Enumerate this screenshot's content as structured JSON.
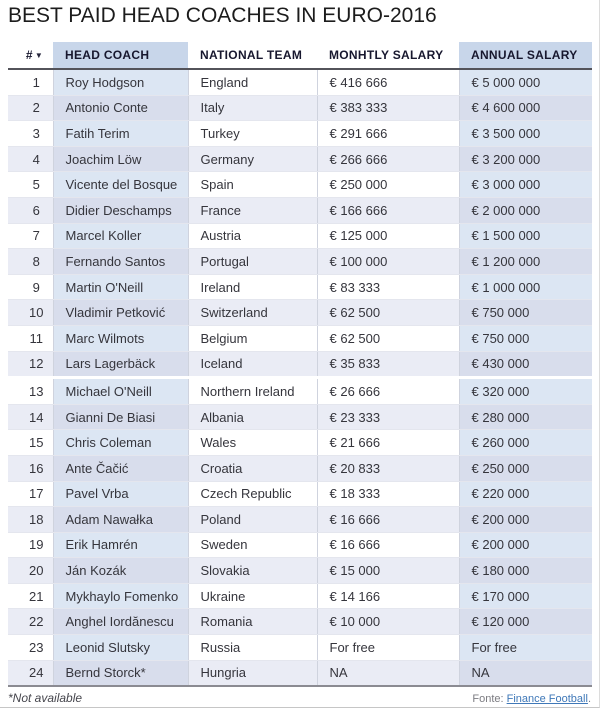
{
  "title": "BEST PAID HEAD COACHES IN EURO-2016",
  "chart_data": {
    "type": "table",
    "sort_icon": "▼",
    "sorted_column": "#",
    "highlighted_columns": [
      "HEAD COACH",
      "ANNUAL SALARY"
    ],
    "columns": [
      "#",
      "HEAD COACH",
      "NATIONAL TEAM",
      "MONHTLY SALARY",
      "ANNUAL SALARY"
    ],
    "rows": [
      [
        "1",
        "Roy Hodgson",
        "England",
        "€ 416 666",
        "€ 5 000 000"
      ],
      [
        "2",
        "Antonio Conte",
        "Italy",
        "€ 383 333",
        "€ 4 600 000"
      ],
      [
        "3",
        "Fatih Terim",
        "Turkey",
        "€ 291 666",
        "€ 3 500 000"
      ],
      [
        "4",
        "Joachim Löw",
        "Germany",
        "€ 266 666",
        "€ 3 200 000"
      ],
      [
        "5",
        "Vicente del Bosque",
        "Spain",
        "€ 250 000",
        "€ 3 000 000"
      ],
      [
        "6",
        "Didier Deschamps",
        "France",
        "€ 166 666",
        "€ 2 000 000"
      ],
      [
        "7",
        "Marcel Koller",
        "Austria",
        "€ 125 000",
        "€ 1 500 000"
      ],
      [
        "8",
        "Fernando Santos",
        "Portugal",
        "€ 100 000",
        "€ 1 200 000"
      ],
      [
        "9",
        "Martin O'Neill",
        "Ireland",
        "€ 83 333",
        "€ 1 000 000"
      ],
      [
        "10",
        "Vladimir Petković",
        "Switzerland",
        "€ 62 500",
        "€ 750 000"
      ],
      [
        "11",
        "Marc Wilmots",
        "Belgium",
        "€ 62 500",
        "€ 750 000"
      ],
      [
        "12",
        "Lars Lagerbäck",
        "Iceland",
        "€ 35 833",
        "€ 430 000"
      ],
      [
        "13",
        "Michael O'Neill",
        "Northern Ireland",
        "€ 26 666",
        "€ 320 000"
      ],
      [
        "14",
        "Gianni De Biasi",
        "Albania",
        "€ 23 333",
        "€ 280 000"
      ],
      [
        "15",
        "Chris Coleman",
        "Wales",
        "€ 21 666",
        "€ 260 000"
      ],
      [
        "16",
        "Ante Čačić",
        "Croatia",
        "€ 20 833",
        "€ 250 000"
      ],
      [
        "17",
        "Pavel Vrba",
        "Czech Republic",
        "€ 18 333",
        "€ 220 000"
      ],
      [
        "18",
        "Adam Nawałka",
        "Poland",
        "€ 16 666",
        "€ 200 000"
      ],
      [
        "19",
        "Erik Hamrén",
        "Sweden",
        "€ 16 666",
        "€ 200 000"
      ],
      [
        "20",
        "Ján Kozák",
        "Slovakia",
        "€ 15 000",
        "€ 180 000"
      ],
      [
        "21",
        "Mykhaylo Fomenko",
        "Ukraine",
        "€ 14 166",
        "€ 170 000"
      ],
      [
        "22",
        "Anghel Iordănescu",
        "Romania",
        "€ 10 000",
        "€ 120 000"
      ],
      [
        "23",
        "Leonid Slutsky",
        "Russia",
        "For free",
        "For free"
      ],
      [
        "24",
        "Bernd Storck*",
        "Hungria",
        "NA",
        "NA"
      ]
    ]
  },
  "footer": {
    "note": "*Not available",
    "source_label": "Fonte:",
    "source_link_text": "Finance Football",
    "source_suffix": "."
  },
  "colors": {
    "header_highlight": "#c8d6ea",
    "row_highlight_odd": "#dce6f3",
    "row_highlight_even": "#d8ddec",
    "row_even": "#eaecf5",
    "header_border": "#53535a",
    "link": "#3f78b8"
  }
}
